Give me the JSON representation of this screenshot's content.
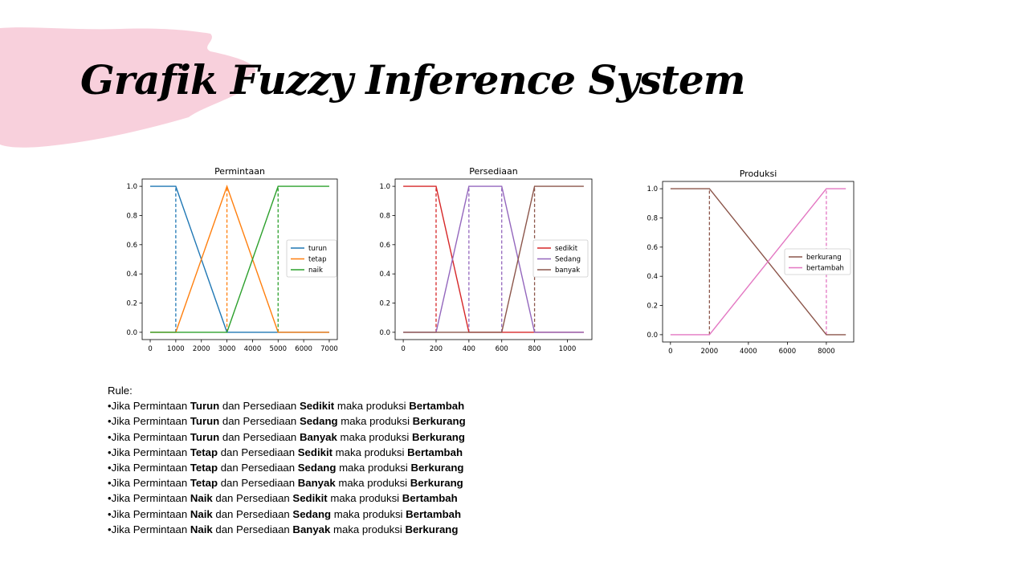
{
  "slide": {
    "title": "Grafik Fuzzy Inference System",
    "accent_color": "#f8d0dc"
  },
  "chart_data": [
    {
      "type": "line",
      "title": "Permintaan",
      "xlim": [
        0,
        7000
      ],
      "ylim": [
        0,
        1
      ],
      "xticks": [
        0,
        1000,
        2000,
        3000,
        4000,
        5000,
        6000,
        7000
      ],
      "yticks": [
        "0.0",
        "0.2",
        "0.4",
        "0.6",
        "0.8",
        "1.0"
      ],
      "legend_position": "right",
      "series": [
        {
          "name": "turun",
          "color": "#1f77b4",
          "x": [
            0,
            1000,
            3000,
            5000,
            7000
          ],
          "y": [
            1,
            1,
            0,
            0,
            0
          ]
        },
        {
          "name": "tetap",
          "color": "#ff7f0e",
          "x": [
            0,
            1000,
            3000,
            5000,
            7000
          ],
          "y": [
            0,
            0,
            1,
            0,
            0
          ]
        },
        {
          "name": "naik",
          "color": "#2ca02c",
          "x": [
            0,
            1000,
            3000,
            5000,
            7000
          ],
          "y": [
            0,
            0,
            0,
            1,
            1
          ]
        }
      ],
      "dashed_lines": [
        {
          "x": 1000,
          "y": [
            0,
            1
          ],
          "color": "#1f77b4"
        },
        {
          "x": 3000,
          "y": [
            0,
            1
          ],
          "color": "#ff7f0e"
        },
        {
          "x": 5000,
          "y": [
            0,
            1
          ],
          "color": "#2ca02c"
        }
      ]
    },
    {
      "type": "line",
      "title": "Persediaan",
      "xlim": [
        0,
        1100
      ],
      "ylim": [
        0,
        1
      ],
      "xticks": [
        0,
        200,
        400,
        600,
        800,
        1000
      ],
      "yticks": [
        "0.0",
        "0.2",
        "0.4",
        "0.6",
        "0.8",
        "1.0"
      ],
      "legend_position": "right",
      "series": [
        {
          "name": "sedikit",
          "color": "#d62728",
          "x": [
            0,
            200,
            400,
            1100
          ],
          "y": [
            1,
            1,
            0,
            0
          ]
        },
        {
          "name": "Sedang",
          "color": "#9467bd",
          "x": [
            0,
            200,
            400,
            600,
            800,
            1100
          ],
          "y": [
            0,
            0,
            1,
            1,
            0,
            0
          ]
        },
        {
          "name": "banyak",
          "color": "#8c564b",
          "x": [
            0,
            600,
            800,
            1100
          ],
          "y": [
            0,
            0,
            1,
            1
          ]
        }
      ],
      "dashed_lines": [
        {
          "x": 200,
          "y": [
            0,
            1
          ],
          "color": "#d62728"
        },
        {
          "x": 400,
          "y": [
            0,
            1
          ],
          "color": "#9467bd"
        },
        {
          "x": 600,
          "y": [
            0,
            1
          ],
          "color": "#9467bd"
        },
        {
          "x": 800,
          "y": [
            0,
            1
          ],
          "color": "#8c564b"
        }
      ]
    },
    {
      "type": "line",
      "title": "Produksi",
      "xlim": [
        0,
        9000
      ],
      "ylim": [
        0,
        1
      ],
      "xticks": [
        0,
        2000,
        4000,
        6000,
        8000
      ],
      "yticks": [
        "0.0",
        "0.2",
        "0.4",
        "0.6",
        "0.8",
        "1.0"
      ],
      "legend_position": "right",
      "series": [
        {
          "name": "berkurang",
          "color": "#8c564b",
          "x": [
            0,
            2000,
            8000,
            9000
          ],
          "y": [
            1,
            1,
            0,
            0
          ]
        },
        {
          "name": "bertambah",
          "color": "#e377c2",
          "x": [
            0,
            2000,
            8000,
            9000
          ],
          "y": [
            0,
            0,
            1,
            1
          ]
        }
      ],
      "dashed_lines": [
        {
          "x": 2000,
          "y": [
            0,
            1
          ],
          "color": "#8c564b"
        },
        {
          "x": 8000,
          "y": [
            0,
            1
          ],
          "color": "#e377c2"
        }
      ]
    }
  ],
  "rules": {
    "heading": "Rule:",
    "bullet": "•",
    "items": [
      {
        "permintaan": "Turun",
        "persediaan": "Sedikit",
        "produksi": "Bertambah"
      },
      {
        "permintaan": "Turun",
        "persediaan": "Sedang",
        "produksi": "Berkurang"
      },
      {
        "permintaan": "Turun",
        "persediaan": "Banyak",
        "produksi": "Berkurang"
      },
      {
        "permintaan": "Tetap",
        "persediaan": "Sedikit",
        "produksi": "Bertambah"
      },
      {
        "permintaan": "Tetap",
        "persediaan": "Sedang",
        "produksi": "Berkurang"
      },
      {
        "permintaan": "Tetap",
        "persediaan": "Banyak",
        "produksi": "Berkurang"
      },
      {
        "permintaan": "Naik",
        "persediaan": "Sedikit",
        "produksi": "Bertambah"
      },
      {
        "permintaan": "Naik",
        "persediaan": "Sedang",
        "produksi": "Bertambah"
      },
      {
        "permintaan": "Naik",
        "persediaan": "Banyak",
        "produksi": "Berkurang"
      }
    ],
    "phrases": {
      "prefix": "Jika Permintaan ",
      "middle": " dan Persediaan ",
      "suffix": " maka produksi "
    }
  }
}
